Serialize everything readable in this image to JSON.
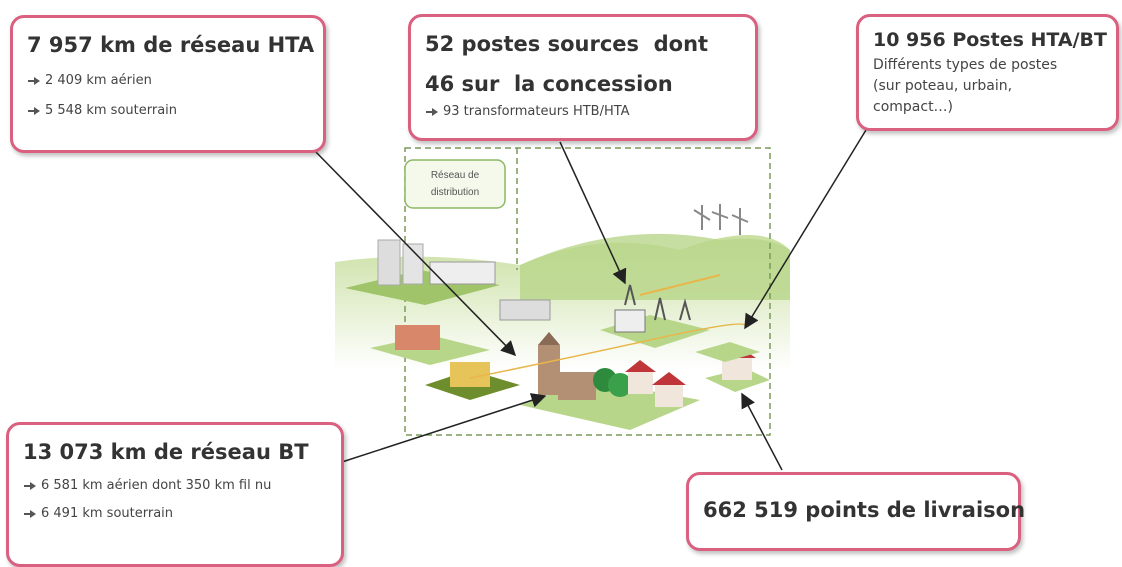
{
  "boxes": [
    {
      "title": "7 957 km de réseau HTA",
      "items": [
        "2 409 km aérien",
        "5 548 km souterrain"
      ]
    },
    {
      "title_lines": [
        "52 postes sources  dont",
        "46 sur  la concession"
      ],
      "items": [
        "93 transformateurs HTB/HTA"
      ]
    },
    {
      "title": "10 956 Postes HTA/BT",
      "description": "Différents types de postes (sur poteau, urbain, compact…)"
    },
    {
      "title": "13 073 km de réseau BT",
      "items": [
        "6 581 km aérien dont 350 km fil nu",
        "6 491 km souterrain"
      ]
    },
    {
      "title": "662 519 points de livraison"
    }
  ],
  "illustration": {
    "label_lines": [
      "Réseau de",
      "distribution"
    ]
  }
}
